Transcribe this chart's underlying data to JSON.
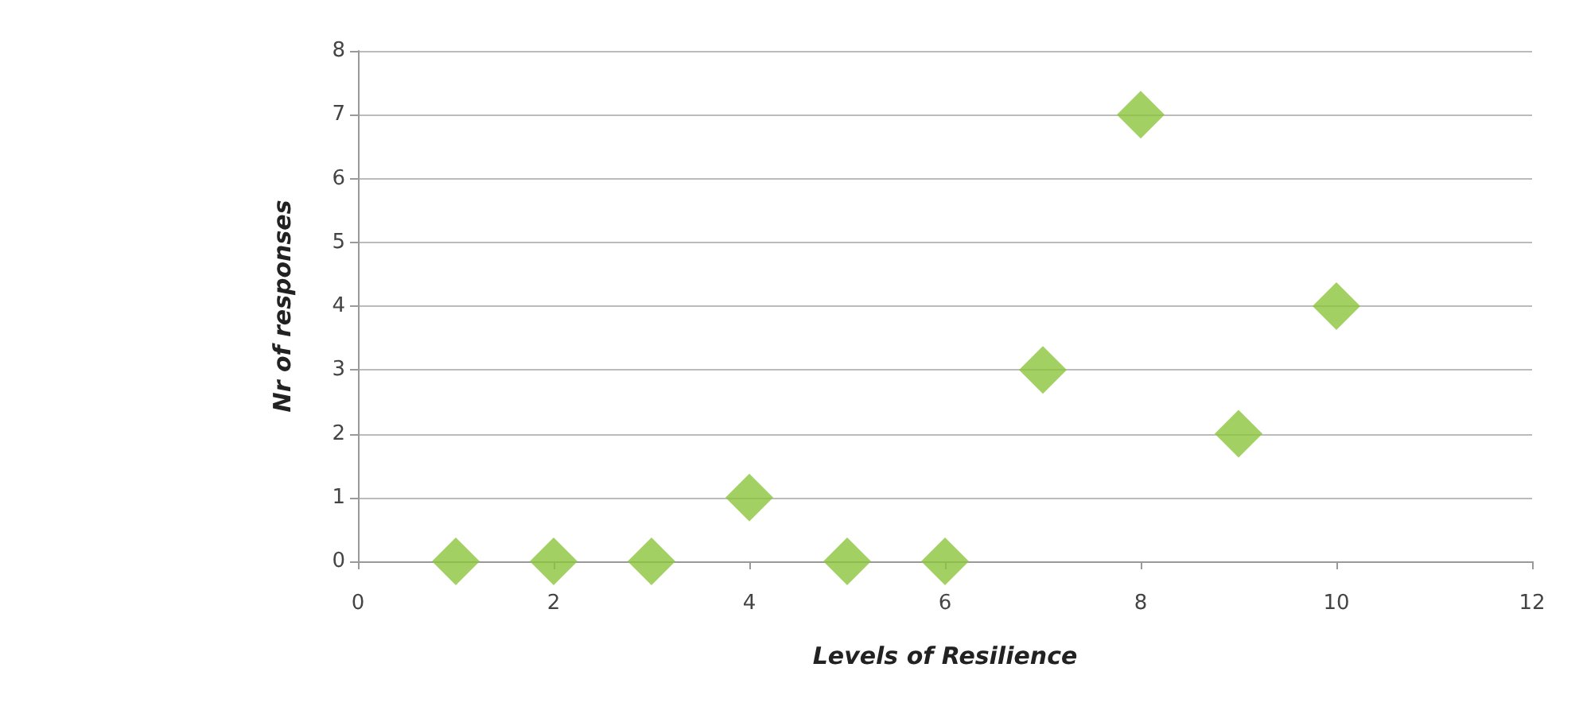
{
  "chart_data": {
    "type": "scatter",
    "xlabel": "Levels of Resilience",
    "ylabel": "Nr of responses",
    "x": [
      1,
      2,
      3,
      4,
      5,
      6,
      7,
      8,
      9,
      10
    ],
    "series": [
      {
        "color": "#8cc43c",
        "values": [
          0,
          0,
          0,
          1,
          0,
          0,
          3,
          7,
          2,
          4
        ]
      }
    ],
    "xlim": [
      0,
      12
    ],
    "xticks": [
      0,
      2,
      4,
      6,
      8,
      10,
      12
    ],
    "ylim": [
      0,
      8
    ],
    "yticks": [
      0,
      1,
      2,
      3,
      4,
      5,
      6,
      7,
      8
    ],
    "grid": "y",
    "marker": "diamond"
  }
}
